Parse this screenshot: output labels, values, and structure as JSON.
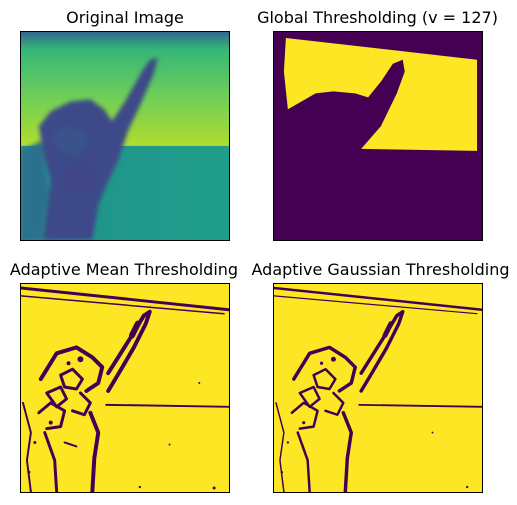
{
  "figure": {
    "panels": [
      {
        "id": "original",
        "title": "Original Image",
        "colors": {
          "sky": "#47c06b",
          "sky_top": "#31688e",
          "lower": "#21908d",
          "hand": "#3b528b",
          "hand_dark": "#414487"
        }
      },
      {
        "id": "global",
        "title": "Global Thresholding (v = 127)",
        "colors": {
          "high": "#fde725",
          "low": "#440154"
        }
      },
      {
        "id": "adaptive-mean",
        "title": "Adaptive Mean Thresholding",
        "colors": {
          "high": "#fde725",
          "low": "#440154"
        }
      },
      {
        "id": "adaptive-gaussian",
        "title": "Adaptive Gaussian Thresholding",
        "colors": {
          "high": "#fde725",
          "low": "#440154"
        }
      }
    ]
  }
}
